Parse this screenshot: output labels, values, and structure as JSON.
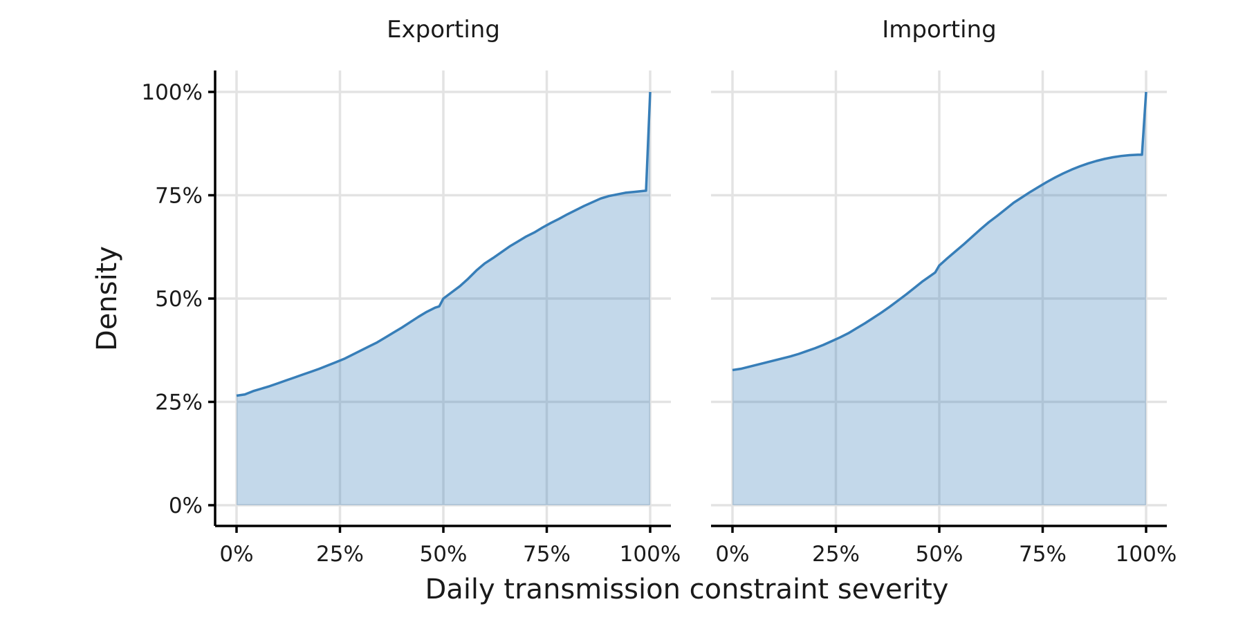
{
  "colors": {
    "series": "#377eb8",
    "grid": "#e3e3e3",
    "axis": "#000000"
  },
  "chart_data": {
    "type": "area",
    "xlabel": "Daily transmission constraint severity",
    "ylabel": "Density",
    "grid": true,
    "xlim": [
      0,
      1
    ],
    "ylim": [
      0,
      1
    ],
    "x_ticks": [
      0,
      0.25,
      0.5,
      0.75,
      1
    ],
    "x_tick_labels": [
      "0%",
      "25%",
      "50%",
      "75%",
      "100%"
    ],
    "y_ticks": [
      0,
      0.25,
      0.5,
      0.75,
      1
    ],
    "y_tick_labels": [
      "0%",
      "25%",
      "50%",
      "75%",
      "100%"
    ],
    "panels": [
      {
        "title": "Exporting",
        "x": [
          0,
          0.02,
          0.04,
          0.06,
          0.08,
          0.1,
          0.12,
          0.14,
          0.16,
          0.18,
          0.2,
          0.22,
          0.24,
          0.26,
          0.28,
          0.3,
          0.32,
          0.34,
          0.36,
          0.38,
          0.4,
          0.42,
          0.44,
          0.46,
          0.48,
          0.49,
          0.5,
          0.52,
          0.54,
          0.56,
          0.58,
          0.6,
          0.62,
          0.64,
          0.66,
          0.68,
          0.7,
          0.72,
          0.74,
          0.76,
          0.78,
          0.8,
          0.82,
          0.84,
          0.86,
          0.88,
          0.9,
          0.92,
          0.94,
          0.96,
          0.98,
          0.99,
          1.0
        ],
        "y": [
          0.265,
          0.268,
          0.276,
          0.282,
          0.288,
          0.295,
          0.302,
          0.309,
          0.316,
          0.323,
          0.33,
          0.338,
          0.346,
          0.354,
          0.364,
          0.374,
          0.384,
          0.394,
          0.406,
          0.418,
          0.43,
          0.443,
          0.456,
          0.468,
          0.478,
          0.481,
          0.5,
          0.515,
          0.53,
          0.548,
          0.568,
          0.585,
          0.598,
          0.612,
          0.626,
          0.638,
          0.65,
          0.66,
          0.672,
          0.683,
          0.693,
          0.704,
          0.714,
          0.724,
          0.733,
          0.742,
          0.748,
          0.752,
          0.756,
          0.758,
          0.76,
          0.761,
          1.0
        ]
      },
      {
        "title": "Importing",
        "x": [
          0,
          0.02,
          0.04,
          0.06,
          0.08,
          0.1,
          0.12,
          0.14,
          0.16,
          0.18,
          0.2,
          0.22,
          0.24,
          0.26,
          0.28,
          0.3,
          0.32,
          0.34,
          0.36,
          0.38,
          0.4,
          0.42,
          0.44,
          0.46,
          0.48,
          0.49,
          0.5,
          0.52,
          0.54,
          0.56,
          0.58,
          0.6,
          0.62,
          0.64,
          0.66,
          0.68,
          0.7,
          0.72,
          0.74,
          0.76,
          0.78,
          0.8,
          0.82,
          0.84,
          0.86,
          0.88,
          0.9,
          0.92,
          0.94,
          0.96,
          0.98,
          0.99,
          1.0
        ],
        "y": [
          0.327,
          0.33,
          0.335,
          0.34,
          0.345,
          0.35,
          0.355,
          0.36,
          0.366,
          0.373,
          0.38,
          0.388,
          0.397,
          0.406,
          0.416,
          0.428,
          0.44,
          0.453,
          0.466,
          0.48,
          0.495,
          0.51,
          0.526,
          0.542,
          0.556,
          0.563,
          0.58,
          0.598,
          0.615,
          0.632,
          0.65,
          0.668,
          0.685,
          0.7,
          0.716,
          0.732,
          0.745,
          0.758,
          0.77,
          0.782,
          0.793,
          0.803,
          0.812,
          0.82,
          0.827,
          0.833,
          0.838,
          0.842,
          0.845,
          0.847,
          0.848,
          0.848,
          1.0
        ]
      }
    ]
  }
}
